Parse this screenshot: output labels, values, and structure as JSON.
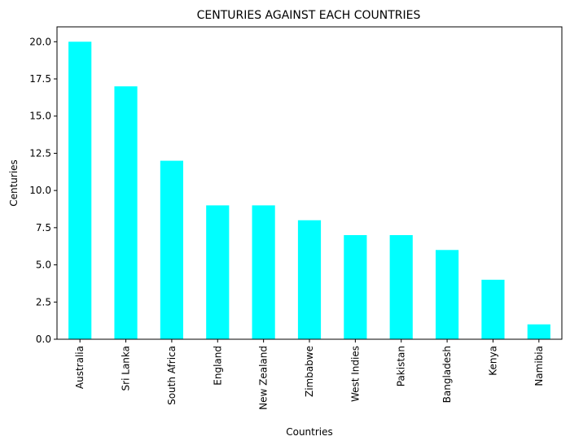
{
  "chart_data": {
    "type": "bar",
    "title": "CENTURIES AGAINST EACH COUNTRIES",
    "xlabel": "Countries",
    "ylabel": "Centuries",
    "categories": [
      "Australia",
      "Sri Lanka",
      "South Africa",
      "England",
      "New Zealand",
      "Zimbabwe",
      "West Indies",
      "Pakistan",
      "Bangladesh",
      "Kenya",
      "Namibia"
    ],
    "values": [
      20,
      17,
      12,
      9,
      9,
      8,
      7,
      7,
      6,
      4,
      1
    ],
    "ylim": [
      0,
      21
    ],
    "yticks": [
      "0.0",
      "2.5",
      "5.0",
      "7.5",
      "10.0",
      "12.5",
      "15.0",
      "17.5",
      "20.0"
    ],
    "bar_color": "#00ffff",
    "grid": false
  }
}
